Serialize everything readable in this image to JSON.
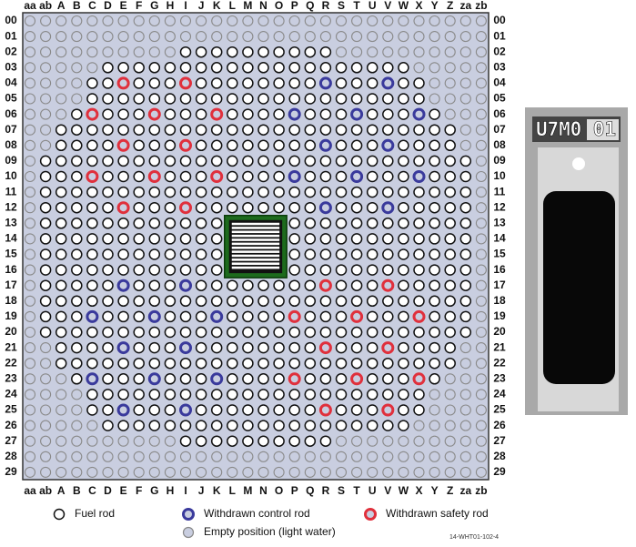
{
  "columns": [
    "aa",
    "ab",
    "A",
    "B",
    "C",
    "D",
    "E",
    "F",
    "G",
    "H",
    "I",
    "J",
    "K",
    "L",
    "M",
    "N",
    "O",
    "P",
    "Q",
    "R",
    "S",
    "T",
    "U",
    "V",
    "W",
    "X",
    "Y",
    "Z",
    "za",
    "zb"
  ],
  "rows": [
    "00",
    "01",
    "02",
    "03",
    "04",
    "05",
    "06",
    "07",
    "08",
    "09",
    "10",
    "11",
    "12",
    "13",
    "14",
    "15",
    "16",
    "17",
    "18",
    "19",
    "20",
    "21",
    "22",
    "23",
    "24",
    "25",
    "26",
    "27",
    "28",
    "29"
  ],
  "legend": {
    "fuel_rod": "Fuel rod",
    "control_rod": "Withdrawn control rod",
    "safety_rod": "Withdrawn safety rod",
    "empty": "Empty position (light water)"
  },
  "sample_label": "U7M0 01",
  "figure_id": "14-WHT01-102-4"
}
